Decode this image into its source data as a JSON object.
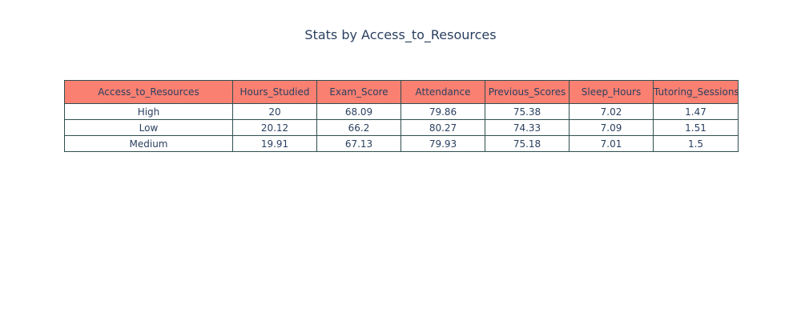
{
  "chart_data": {
    "type": "table",
    "title": "Stats by Access_to_Resources",
    "header_fill": "#fa8072",
    "cell_fill": "#ffffff",
    "line_color": "#2f4f4f",
    "columns": [
      "Access_to_Resources",
      "Hours_Studied",
      "Exam_Score",
      "Attendance",
      "Previous_Scores",
      "Sleep_Hours",
      "Tutoring_Sessions"
    ],
    "rows": [
      [
        "High",
        "20",
        "68.09",
        "79.86",
        "75.38",
        "7.02",
        "1.47"
      ],
      [
        "Low",
        "20.12",
        "66.2",
        "80.27",
        "74.33",
        "7.09",
        "1.51"
      ],
      [
        "Medium",
        "19.91",
        "67.13",
        "79.93",
        "75.18",
        "7.01",
        "1.5"
      ]
    ]
  }
}
